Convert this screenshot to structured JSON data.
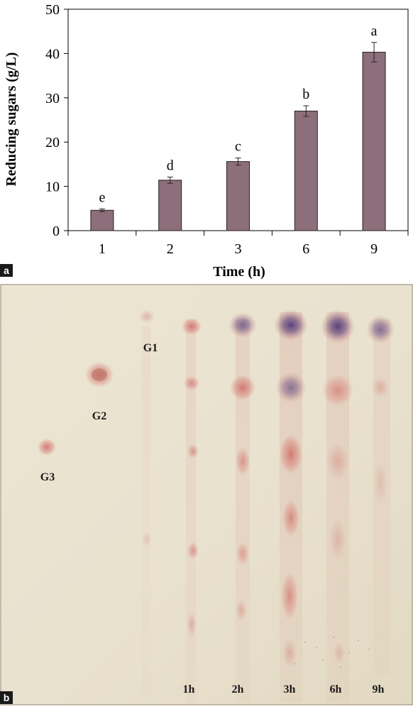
{
  "panel_a": {
    "letter": "a",
    "chart_data": {
      "type": "bar",
      "categories": [
        "1",
        "2",
        "3",
        "6",
        "9"
      ],
      "values": [
        4.6,
        11.4,
        15.6,
        27.0,
        40.3
      ],
      "errors": [
        0.3,
        0.7,
        0.8,
        1.2,
        2.2
      ],
      "significance_letters": [
        "e",
        "d",
        "c",
        "b",
        "a"
      ],
      "title": "",
      "xlabel": "Time (h)",
      "ylabel": "Reducing sugars (g/L)",
      "ylim": [
        0,
        50
      ],
      "yticks": [
        "0",
        "10",
        "20",
        "30",
        "40",
        "50"
      ],
      "grid": false,
      "legend": "none",
      "bar_color": "#8c6f7a"
    }
  },
  "panel_b": {
    "letter": "b",
    "standards": [
      {
        "label": "G3"
      },
      {
        "label": "G2"
      },
      {
        "label": "G1"
      }
    ],
    "lanes": [
      {
        "label": "1h"
      },
      {
        "label": "2h"
      },
      {
        "label": "3h"
      },
      {
        "label": "6h"
      },
      {
        "label": "9h"
      }
    ],
    "plate_color": "#e8e1cf",
    "spot_color": "#d98a82",
    "dark_spot_color": "#6d4f7f"
  }
}
